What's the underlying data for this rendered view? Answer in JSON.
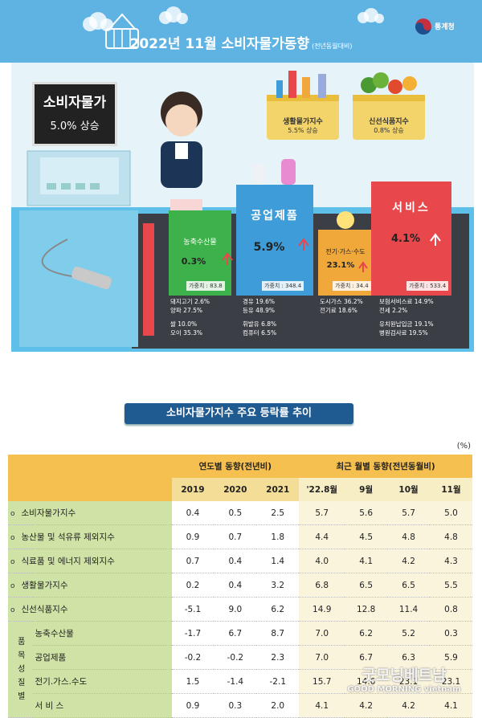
{
  "header": {
    "title": "2022년  11월 소비자물가동향",
    "subtitle": "(전년동월대비)",
    "logo_text": "통계청"
  },
  "headline": {
    "label": "소비자물가",
    "value": "5.0% 상승"
  },
  "baskets": [
    {
      "label": "생활물가지수",
      "value": "5.5% 상승"
    },
    {
      "label": "신선식품지수",
      "value": "0.8% 상승"
    }
  ],
  "categories": [
    {
      "name": "농축수산물",
      "value": "0.3%",
      "weight": "가중치 : 83.8",
      "color": "#3db14a",
      "items": [
        "돼지고기 2.6%",
        "양파 27.5%",
        "쌀 10.0%",
        "오이 35.3%"
      ]
    },
    {
      "name": "공업제품",
      "value": "5.9%",
      "weight": "가중치 : 348.4",
      "color": "#3e9cd9",
      "items": [
        "경유 19.6%",
        "등유 48.9%",
        "휘발유 6.8%",
        "컴퓨터 6.5%"
      ]
    },
    {
      "name": "전기·가스·수도",
      "value": "23.1%",
      "weight": "가중치 : 34.4",
      "color": "#f0a83a",
      "items": [
        "도시가스 36.2%",
        "전기료 18.6%"
      ]
    },
    {
      "name": "서비스",
      "value": "4.1%",
      "weight": "가중치 : 533.4",
      "color": "#e8474c",
      "items": [
        "보험서비스료 14.9%",
        "전세 2.2%",
        "유치원납입금 19.1%",
        "병원검사료 19.5%"
      ]
    }
  ],
  "section_title": "소비자물가지수 주요 등락률 추이",
  "unit": "(%)",
  "table": {
    "group_headers": [
      "연도별 동향(전년비)",
      "최근 월별 동향(전년동월비)"
    ],
    "columns": [
      "2019",
      "2020",
      "2021",
      "'22.8월",
      "9월",
      "10월",
      "11월"
    ],
    "group_label": "품목성질별",
    "rows": [
      {
        "label": "소비자물가지수",
        "values": [
          "0.4",
          "0.5",
          "2.5",
          "5.7",
          "5.6",
          "5.7",
          "5.0"
        ]
      },
      {
        "label": "농산물 및 석유류 제외지수",
        "values": [
          "0.9",
          "0.7",
          "1.8",
          "4.4",
          "4.5",
          "4.8",
          "4.8"
        ]
      },
      {
        "label": "식료품 및 에너지 제외지수",
        "values": [
          "0.7",
          "0.4",
          "1.4",
          "4.0",
          "4.1",
          "4.2",
          "4.3"
        ]
      },
      {
        "label": "생활물가지수",
        "values": [
          "0.2",
          "0.4",
          "3.2",
          "6.8",
          "6.5",
          "6.5",
          "5.5"
        ]
      },
      {
        "label": "신선식품지수",
        "values": [
          "-5.1",
          "9.0",
          "6.2",
          "14.9",
          "12.8",
          "11.4",
          "0.8"
        ]
      },
      {
        "label": "농축수산물",
        "values": [
          "-1.7",
          "6.7",
          "8.7",
          "7.0",
          "6.2",
          "5.2",
          "0.3"
        ]
      },
      {
        "label": "공업제품",
        "values": [
          "-0.2",
          "-0.2",
          "2.3",
          "7.0",
          "6.7",
          "6.3",
          "5.9"
        ]
      },
      {
        "label": "전기.가스.수도",
        "values": [
          "1.5",
          "-1.4",
          "-2.1",
          "15.7",
          "14.6",
          "23.1",
          "23.1"
        ]
      },
      {
        "label": "서 비 스",
        "values": [
          "0.9",
          "0.3",
          "2.0",
          "4.1",
          "4.2",
          "4.2",
          "4.1"
        ]
      }
    ]
  },
  "watermark": {
    "line1": "굿모닝베트남",
    "line2": "GOOD MORNING vietnam"
  },
  "chart_data": {
    "type": "table",
    "categories": [
      "2019",
      "2020",
      "2021",
      "'22.8월",
      "9월",
      "10월",
      "11월"
    ],
    "series": [
      {
        "name": "소비자물가지수",
        "values": [
          0.4,
          0.5,
          2.5,
          5.7,
          5.6,
          5.7,
          5.0
        ]
      },
      {
        "name": "농산물 및 석유류 제외지수",
        "values": [
          0.9,
          0.7,
          1.8,
          4.4,
          4.5,
          4.8,
          4.8
        ]
      },
      {
        "name": "식료품 및 에너지 제외지수",
        "values": [
          0.7,
          0.4,
          1.4,
          4.0,
          4.1,
          4.2,
          4.3
        ]
      },
      {
        "name": "생활물가지수",
        "values": [
          0.2,
          0.4,
          3.2,
          6.8,
          6.5,
          6.5,
          5.5
        ]
      },
      {
        "name": "신선식품지수",
        "values": [
          -5.1,
          9.0,
          6.2,
          14.9,
          12.8,
          11.4,
          0.8
        ]
      },
      {
        "name": "농축수산물",
        "values": [
          -1.7,
          6.7,
          8.7,
          7.0,
          6.2,
          5.2,
          0.3
        ]
      },
      {
        "name": "공업제품",
        "values": [
          -0.2,
          -0.2,
          2.3,
          7.0,
          6.7,
          6.3,
          5.9
        ]
      },
      {
        "name": "전기.가스.수도",
        "values": [
          1.5,
          -1.4,
          -2.1,
          15.7,
          14.6,
          23.1,
          23.1
        ]
      },
      {
        "name": "서 비 스",
        "values": [
          0.9,
          0.3,
          2.0,
          4.1,
          4.2,
          4.2,
          4.1
        ]
      }
    ]
  }
}
